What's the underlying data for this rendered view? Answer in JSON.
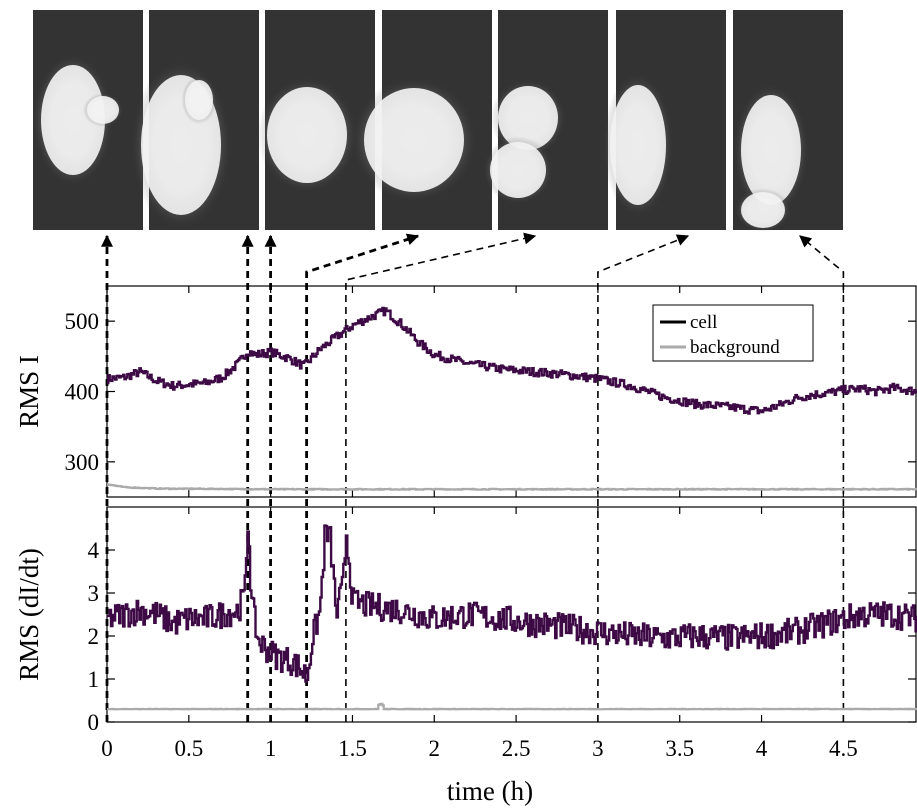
{
  "figure": {
    "x_axis": {
      "label": "time (h)",
      "ticks": [
        0,
        0.5,
        1,
        1.5,
        2,
        2.5,
        3,
        3.5,
        4,
        4.5
      ],
      "tick_labels": [
        "0",
        "0.5",
        "1",
        "1.5",
        "2",
        "2.5",
        "3",
        "3.5",
        "4",
        "4.5"
      ]
    },
    "marker_times_h": [
      0,
      0.86,
      1.0,
      1.22,
      1.46,
      3.0,
      4.5
    ],
    "thumbnails_count": 7
  },
  "chart_data": [
    {
      "type": "line",
      "ylabel": "RMS I",
      "xlabel": "time (h)",
      "xlim": [
        0,
        4.95
      ],
      "ylim": [
        250,
        550
      ],
      "yticks": [
        300,
        400,
        500
      ],
      "legend": {
        "position": "top-right",
        "entries": [
          "cell",
          "background"
        ]
      },
      "series": [
        {
          "name": "cell",
          "color": "#3d0a45",
          "x": [
            0,
            0.1,
            0.2,
            0.3,
            0.4,
            0.5,
            0.6,
            0.7,
            0.8,
            0.86,
            0.9,
            1.0,
            1.1,
            1.2,
            1.3,
            1.4,
            1.5,
            1.6,
            1.7,
            1.8,
            1.9,
            2.0,
            2.2,
            2.4,
            2.6,
            2.8,
            3.0,
            3.2,
            3.4,
            3.6,
            3.8,
            4.0,
            4.1,
            4.2,
            4.3,
            4.4,
            4.5,
            4.6,
            4.7,
            4.8,
            4.95
          ],
          "values": [
            418,
            420,
            428,
            415,
            408,
            410,
            412,
            420,
            440,
            458,
            452,
            456,
            448,
            436,
            460,
            478,
            494,
            505,
            515,
            495,
            470,
            452,
            440,
            432,
            428,
            424,
            418,
            408,
            392,
            382,
            378,
            372,
            380,
            390,
            395,
            398,
            402,
            404,
            400,
            405,
            400
          ]
        },
        {
          "name": "background",
          "color": "#aaaaaa",
          "x": [
            0,
            0.1,
            0.3,
            1.0,
            2.0,
            3.0,
            4.0,
            4.95
          ],
          "values": [
            268,
            264,
            262,
            261,
            261,
            261,
            261,
            261
          ]
        }
      ]
    },
    {
      "type": "line",
      "ylabel": "RMS (dI/dt)",
      "xlabel": "time (h)",
      "xlim": [
        0,
        4.95
      ],
      "ylim": [
        0,
        5
      ],
      "yticks": [
        0,
        1,
        2,
        3,
        4
      ],
      "series": [
        {
          "name": "cell",
          "color": "#3d0a45",
          "x": [
            0,
            0.1,
            0.2,
            0.3,
            0.4,
            0.5,
            0.6,
            0.7,
            0.8,
            0.84,
            0.86,
            0.88,
            0.92,
            1.0,
            1.05,
            1.1,
            1.15,
            1.2,
            1.22,
            1.25,
            1.3,
            1.33,
            1.36,
            1.4,
            1.44,
            1.46,
            1.5,
            1.6,
            1.8,
            2.0,
            2.2,
            2.4,
            2.6,
            2.8,
            3.0,
            3.2,
            3.4,
            3.6,
            3.8,
            4.0,
            4.2,
            4.4,
            4.5,
            4.6,
            4.8,
            4.95
          ],
          "values": [
            2.4,
            2.5,
            2.6,
            2.5,
            2.3,
            2.4,
            2.4,
            2.5,
            2.6,
            3.0,
            4.8,
            2.8,
            1.9,
            1.6,
            1.5,
            1.45,
            1.35,
            1.15,
            1.05,
            1.9,
            2.6,
            4.4,
            4.3,
            2.5,
            3.2,
            4.4,
            2.8,
            2.7,
            2.6,
            2.4,
            2.5,
            2.4,
            2.3,
            2.2,
            2.1,
            2.0,
            1.95,
            2.0,
            1.95,
            2.0,
            2.1,
            2.3,
            2.4,
            2.5,
            2.5,
            2.4
          ]
        },
        {
          "name": "background",
          "color": "#aaaaaa",
          "x": [
            0,
            1.65,
            1.66,
            1.68,
            1.69,
            4.95
          ],
          "values": [
            0.3,
            0.3,
            0.42,
            0.42,
            0.3,
            0.3
          ]
        }
      ]
    }
  ]
}
